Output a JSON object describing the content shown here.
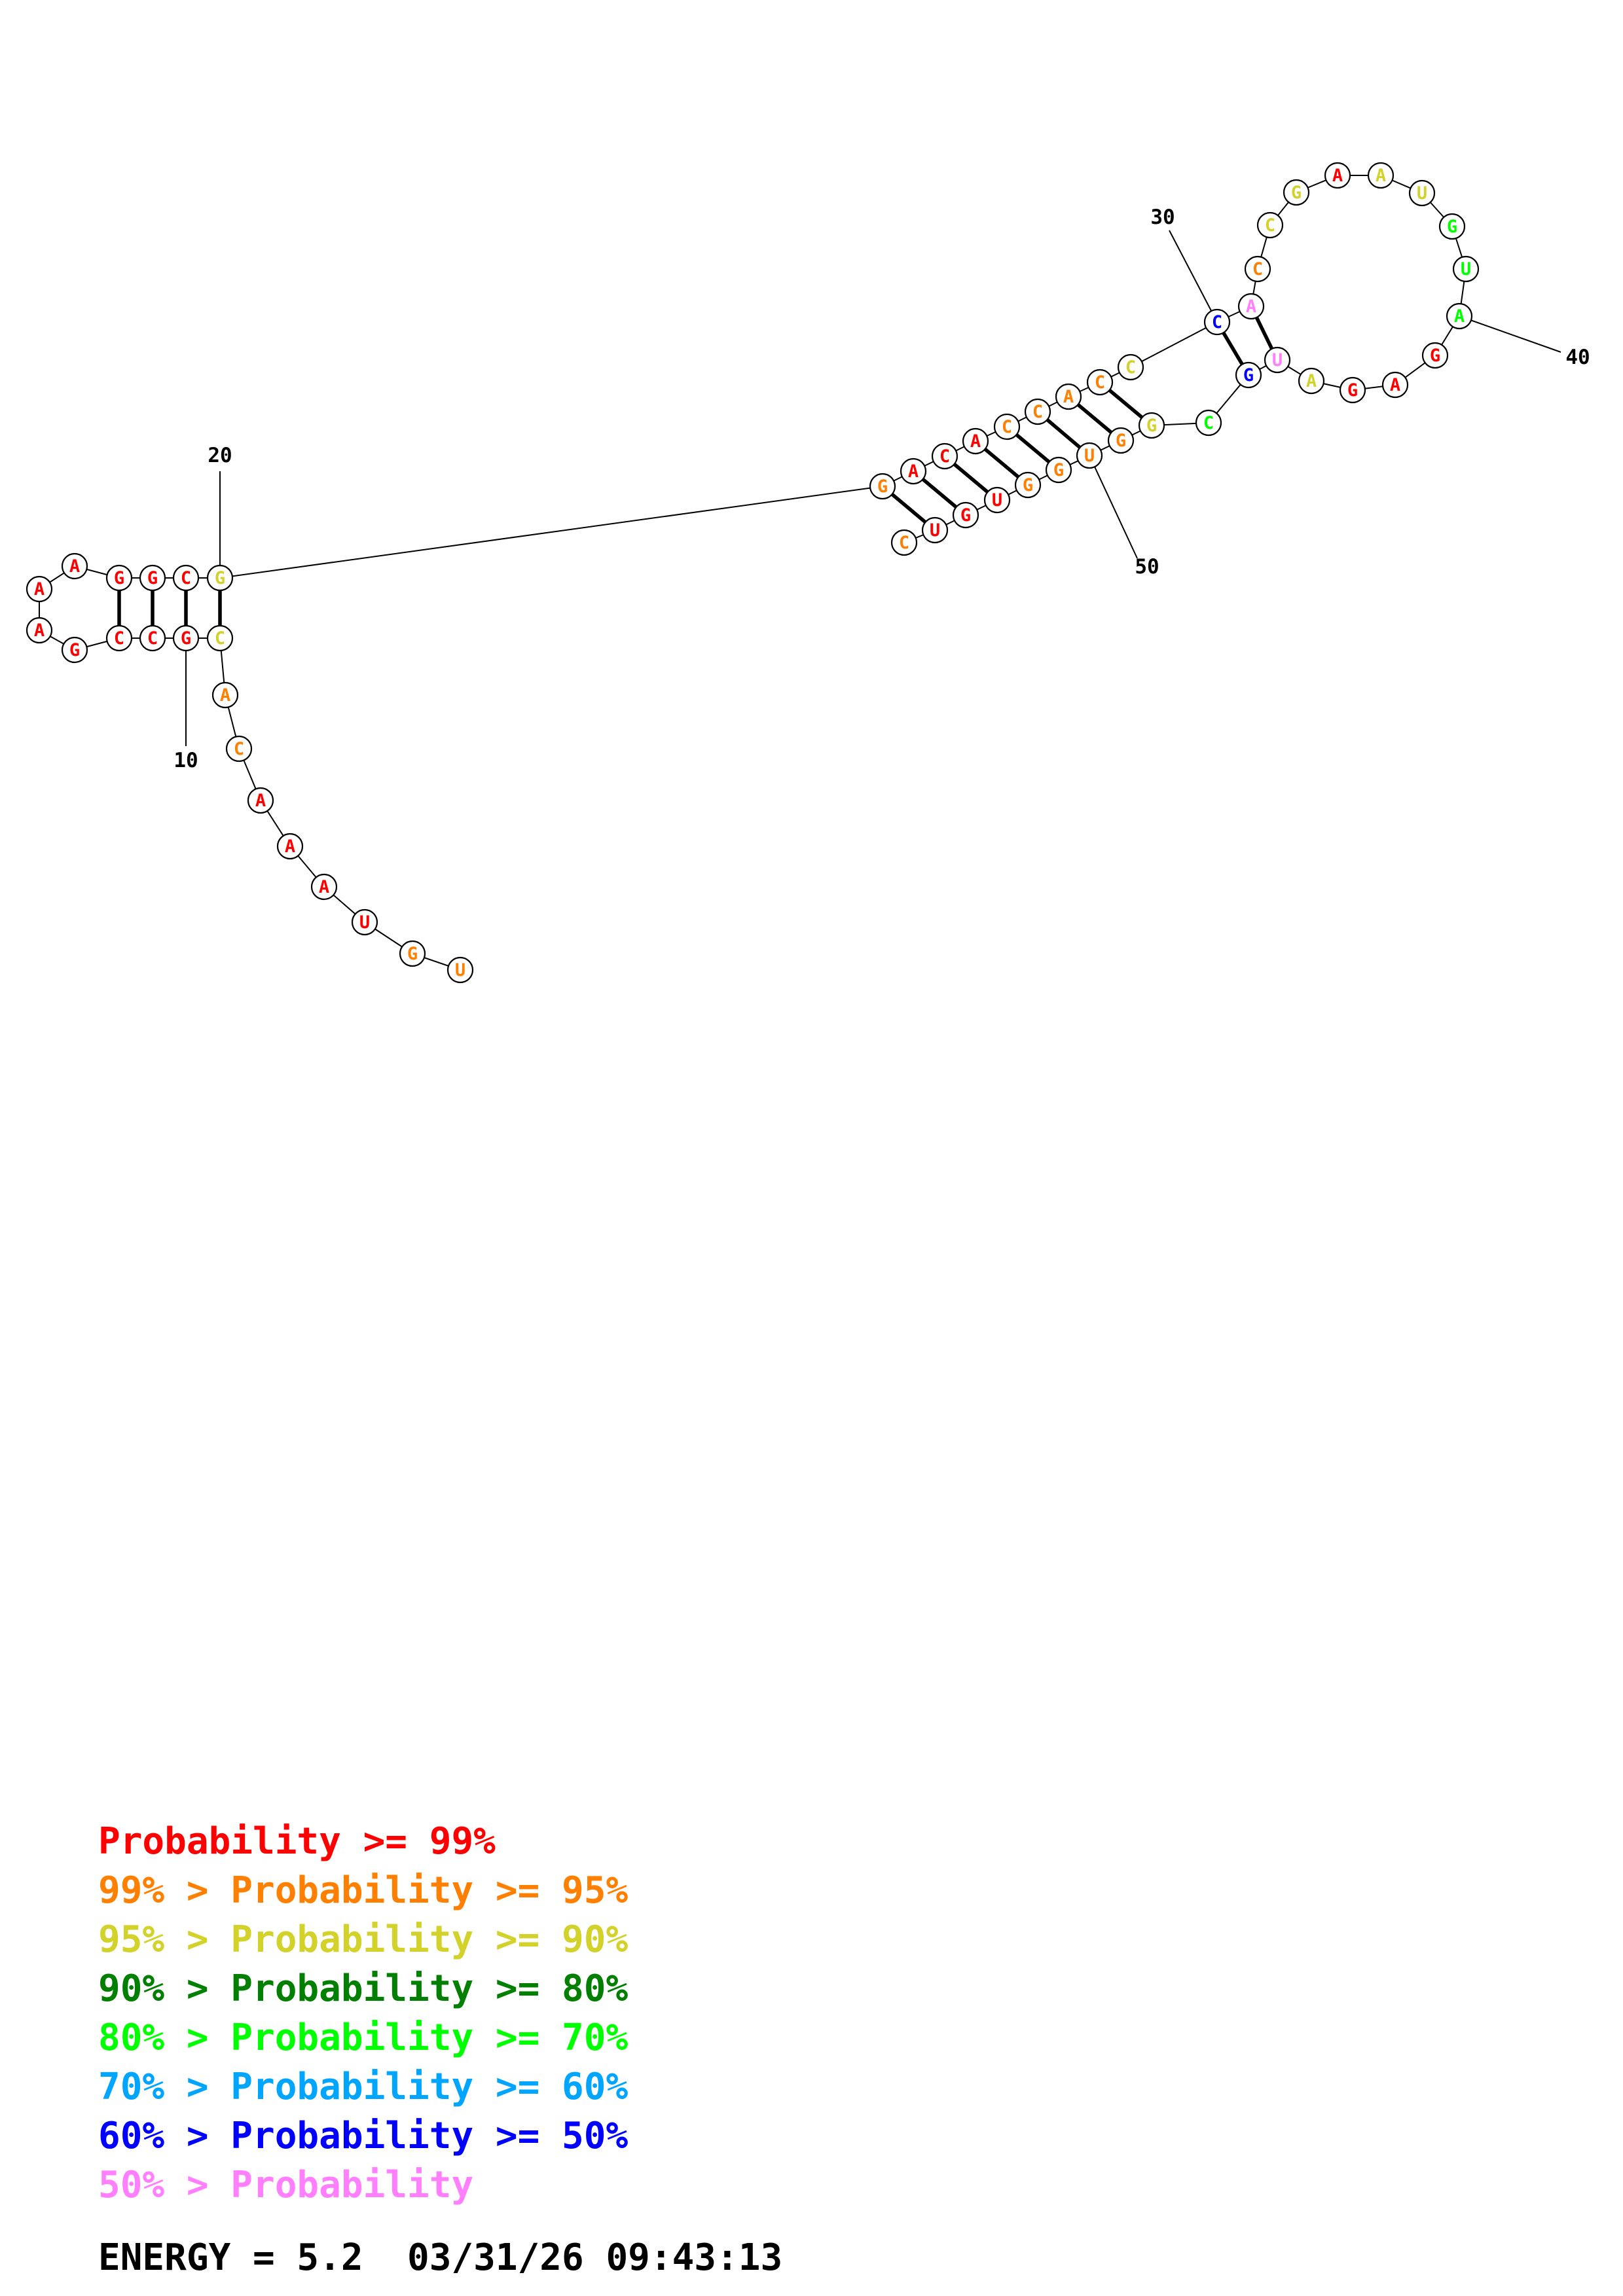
{
  "colors": {
    "c99": "#ff0000",
    "c95": "#ff7f00",
    "c90": "#d2d22a",
    "c80": "#007f00",
    "c70": "#00ff00",
    "c60": "#00a5ff",
    "c50": "#0000ff",
    "c00": "#ff7fff"
  },
  "sequence": [
    {
      "n": 1,
      "b": "U",
      "c": "c95"
    },
    {
      "n": 2,
      "b": "G",
      "c": "c95"
    },
    {
      "n": 3,
      "b": "U",
      "c": "c99"
    },
    {
      "n": 4,
      "b": "A",
      "c": "c99"
    },
    {
      "n": 5,
      "b": "A",
      "c": "c99"
    },
    {
      "n": 6,
      "b": "A",
      "c": "c99"
    },
    {
      "n": 7,
      "b": "C",
      "c": "c95"
    },
    {
      "n": 8,
      "b": "A",
      "c": "c95"
    },
    {
      "n": 9,
      "b": "C",
      "c": "c90"
    },
    {
      "n": 10,
      "b": "G",
      "c": "c99"
    },
    {
      "n": 11,
      "b": "C",
      "c": "c99"
    },
    {
      "n": 12,
      "b": "C",
      "c": "c99"
    },
    {
      "n": 13,
      "b": "G",
      "c": "c99"
    },
    {
      "n": 14,
      "b": "A",
      "c": "c99"
    },
    {
      "n": 15,
      "b": "A",
      "c": "c99"
    },
    {
      "n": 16,
      "b": "A",
      "c": "c99"
    },
    {
      "n": 17,
      "b": "G",
      "c": "c99"
    },
    {
      "n": 18,
      "b": "G",
      "c": "c99"
    },
    {
      "n": 19,
      "b": "C",
      "c": "c99"
    },
    {
      "n": 20,
      "b": "G",
      "c": "c90"
    },
    {
      "n": 21,
      "b": "G",
      "c": "c95"
    },
    {
      "n": 22,
      "b": "A",
      "c": "c99"
    },
    {
      "n": 23,
      "b": "C",
      "c": "c99"
    },
    {
      "n": 24,
      "b": "A",
      "c": "c99"
    },
    {
      "n": 25,
      "b": "C",
      "c": "c95"
    },
    {
      "n": 26,
      "b": "C",
      "c": "c95"
    },
    {
      "n": 27,
      "b": "A",
      "c": "c95"
    },
    {
      "n": 28,
      "b": "C",
      "c": "c95"
    },
    {
      "n": 29,
      "b": "C",
      "c": "c90"
    },
    {
      "n": 30,
      "b": "C",
      "c": "c50"
    },
    {
      "n": 31,
      "b": "A",
      "c": "c00"
    },
    {
      "n": 32,
      "b": "C",
      "c": "c95"
    },
    {
      "n": 33,
      "b": "C",
      "c": "c90"
    },
    {
      "n": 34,
      "b": "G",
      "c": "c90"
    },
    {
      "n": 35,
      "b": "A",
      "c": "c99"
    },
    {
      "n": 36,
      "b": "A",
      "c": "c90"
    },
    {
      "n": 37,
      "b": "U",
      "c": "c90"
    },
    {
      "n": 38,
      "b": "G",
      "c": "c70"
    },
    {
      "n": 39,
      "b": "U",
      "c": "c70"
    },
    {
      "n": 40,
      "b": "A",
      "c": "c70"
    },
    {
      "n": 41,
      "b": "G",
      "c": "c99"
    },
    {
      "n": 42,
      "b": "A",
      "c": "c99"
    },
    {
      "n": 43,
      "b": "G",
      "c": "c99"
    },
    {
      "n": 44,
      "b": "A",
      "c": "c90"
    },
    {
      "n": 45,
      "b": "U",
      "c": "c00"
    },
    {
      "n": 46,
      "b": "G",
      "c": "c50"
    },
    {
      "n": 47,
      "b": "C",
      "c": "c70"
    },
    {
      "n": 48,
      "b": "G",
      "c": "c90"
    },
    {
      "n": 49,
      "b": "G",
      "c": "c95"
    },
    {
      "n": 50,
      "b": "U",
      "c": "c95"
    },
    {
      "n": 51,
      "b": "G",
      "c": "c95"
    },
    {
      "n": 52,
      "b": "G",
      "c": "c95"
    },
    {
      "n": 53,
      "b": "U",
      "c": "c99"
    },
    {
      "n": 54,
      "b": "G",
      "c": "c99"
    },
    {
      "n": 55,
      "b": "U",
      "c": "c99"
    },
    {
      "n": 56,
      "b": "C",
      "c": "c95"
    }
  ],
  "pairs": [
    [
      9,
      20
    ],
    [
      10,
      19
    ],
    [
      11,
      18
    ],
    [
      12,
      17
    ],
    [
      21,
      55
    ],
    [
      22,
      54
    ],
    [
      23,
      53
    ],
    [
      24,
      52
    ],
    [
      25,
      51
    ],
    [
      26,
      50
    ],
    [
      27,
      49
    ],
    [
      28,
      48
    ],
    [
      30,
      46
    ],
    [
      31,
      45
    ]
  ],
  "index_labels": [
    "10",
    "20",
    "30",
    "40",
    "50"
  ],
  "legend": [
    {
      "text": "    Probability >= 99%",
      "c": "c99"
    },
    {
      "text": "99% > Probability >= 95%",
      "c": "c95"
    },
    {
      "text": "95% > Probability >= 90%",
      "c": "c90"
    },
    {
      "text": "90% > Probability >= 80%",
      "c": "c80"
    },
    {
      "text": "80% > Probability >= 70%",
      "c": "c70"
    },
    {
      "text": "70% > Probability >= 60%",
      "c": "c60"
    },
    {
      "text": "60% > Probability >= 50%",
      "c": "c50"
    },
    {
      "text": "50% > Probability",
      "c": "c00"
    }
  ],
  "energy_line": "ENERGY = 5.2  03/31/26 09:43:13"
}
